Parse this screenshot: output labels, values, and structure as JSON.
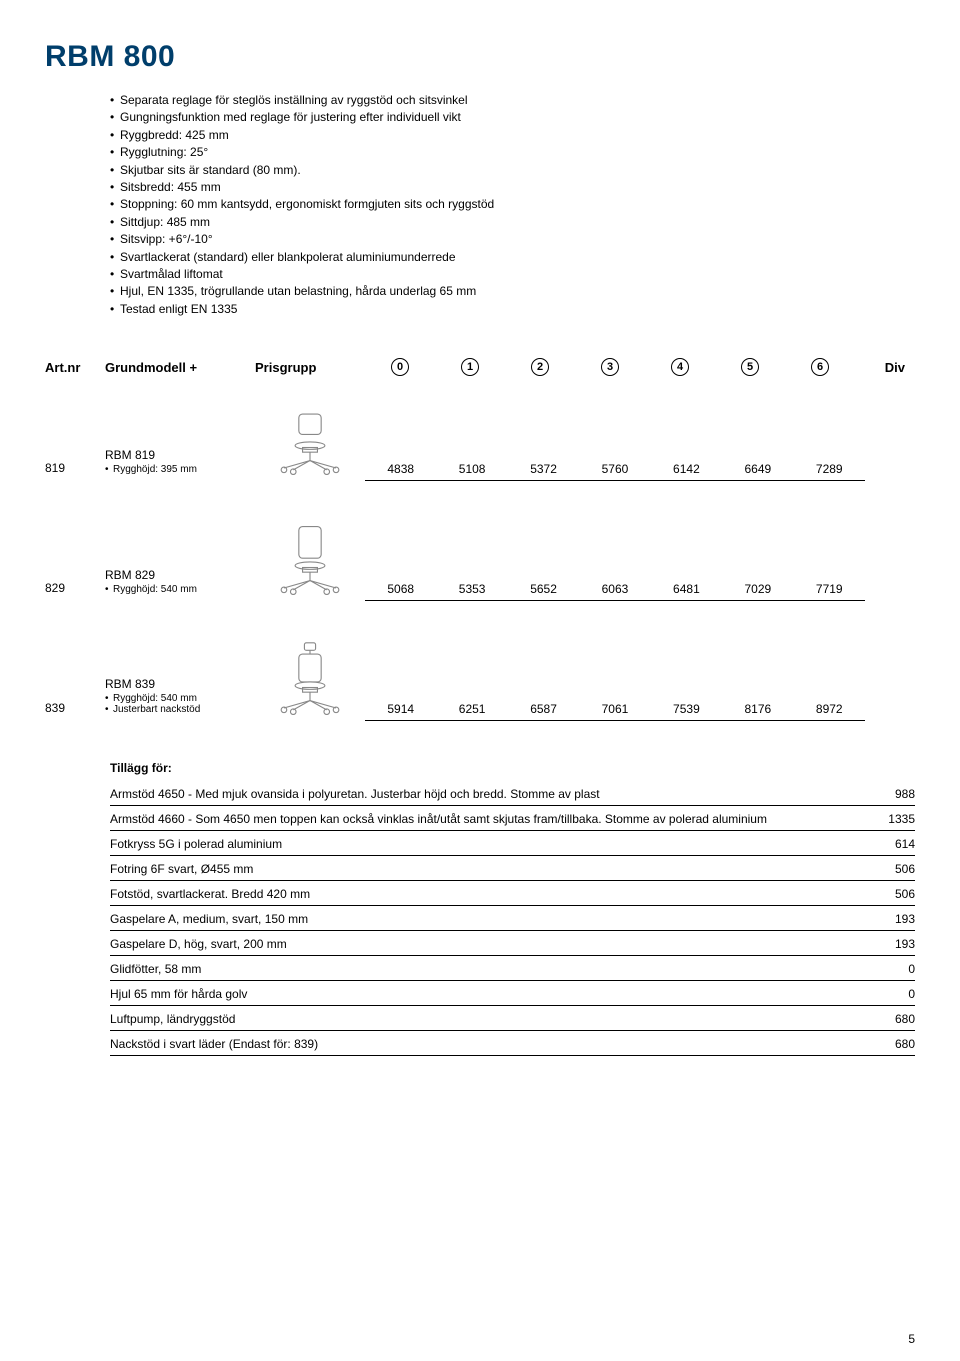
{
  "title": "RBM 800",
  "specs": [
    "Separata reglage för steglös inställning av ryggstöd och sitsvinkel",
    "Gungningsfunktion med reglage för justering efter individuell vikt",
    "Ryggbredd: 425 mm",
    "Rygglutning: 25°",
    "Skjutbar sits är standard (80 mm).",
    "Sitsbredd: 455 mm",
    "Stoppning: 60 mm kantsydd, ergonomiskt formgjuten sits och ryggstöd",
    "Sittdjup: 485 mm",
    "Sitsvipp: +6°/-10°",
    "Svartlackerat (standard) eller blankpolerat aluminiumunderrede",
    "Svartmålad liftomat",
    "Hjul, EN 1335, trögrullande utan belastning, hårda underlag 65 mm",
    "Testad enligt EN 1335"
  ],
  "table_headers": {
    "artnr": "Art.nr",
    "model": "Grundmodell +",
    "prisgrupp": "Prisgrupp",
    "cols": [
      "0",
      "1",
      "2",
      "3",
      "4",
      "5",
      "6"
    ],
    "div": "Div"
  },
  "products": [
    {
      "artnr": "819",
      "name": "RBM 819",
      "details": [
        "Rygghöjd: 395 mm"
      ],
      "prices": [
        "4838",
        "5108",
        "5372",
        "5760",
        "6142",
        "6649",
        "7289"
      ],
      "icon": "chair-low"
    },
    {
      "artnr": "829",
      "name": "RBM 829",
      "details": [
        "Rygghöjd: 540 mm"
      ],
      "prices": [
        "5068",
        "5353",
        "5652",
        "6063",
        "6481",
        "7029",
        "7719"
      ],
      "icon": "chair-high"
    },
    {
      "artnr": "839",
      "name": "RBM 839",
      "details": [
        "Rygghöjd: 540 mm",
        "Justerbart nackstöd"
      ],
      "prices": [
        "5914",
        "6251",
        "6587",
        "7061",
        "7539",
        "8176",
        "8972"
      ],
      "icon": "chair-headrest"
    }
  ],
  "tillagg": {
    "title": "Tillägg för:",
    "rows": [
      {
        "desc": "Armstöd 4650 - Med mjuk ovansida i polyuretan. Justerbar höjd och bredd. Stomme av plast",
        "price": "988"
      },
      {
        "desc": "Armstöd 4660 - Som 4650 men toppen kan också vinklas inåt/utåt samt skjutas fram/tillbaka. Stomme av polerad aluminium",
        "price": "1335"
      },
      {
        "desc": "Fotkryss 5G i polerad aluminium",
        "price": "614"
      },
      {
        "desc": "Fotring 6F svart, Ø455 mm",
        "price": "506"
      },
      {
        "desc": "Fotstöd, svartlackerat. Bredd 420 mm",
        "price": "506"
      },
      {
        "desc": "Gaspelare A, medium, svart, 150 mm",
        "price": "193"
      },
      {
        "desc": "Gaspelare D, hög, svart, 200 mm",
        "price": "193"
      },
      {
        "desc": "Glidfötter, 58 mm",
        "price": "0"
      },
      {
        "desc": "Hjul 65 mm för hårda golv",
        "price": "0"
      },
      {
        "desc": "Luftpump, ländryggstöd",
        "price": "680"
      },
      {
        "desc": "Nackstöd i svart läder (Endast för: 839)",
        "price": "680"
      }
    ]
  },
  "page": "5"
}
